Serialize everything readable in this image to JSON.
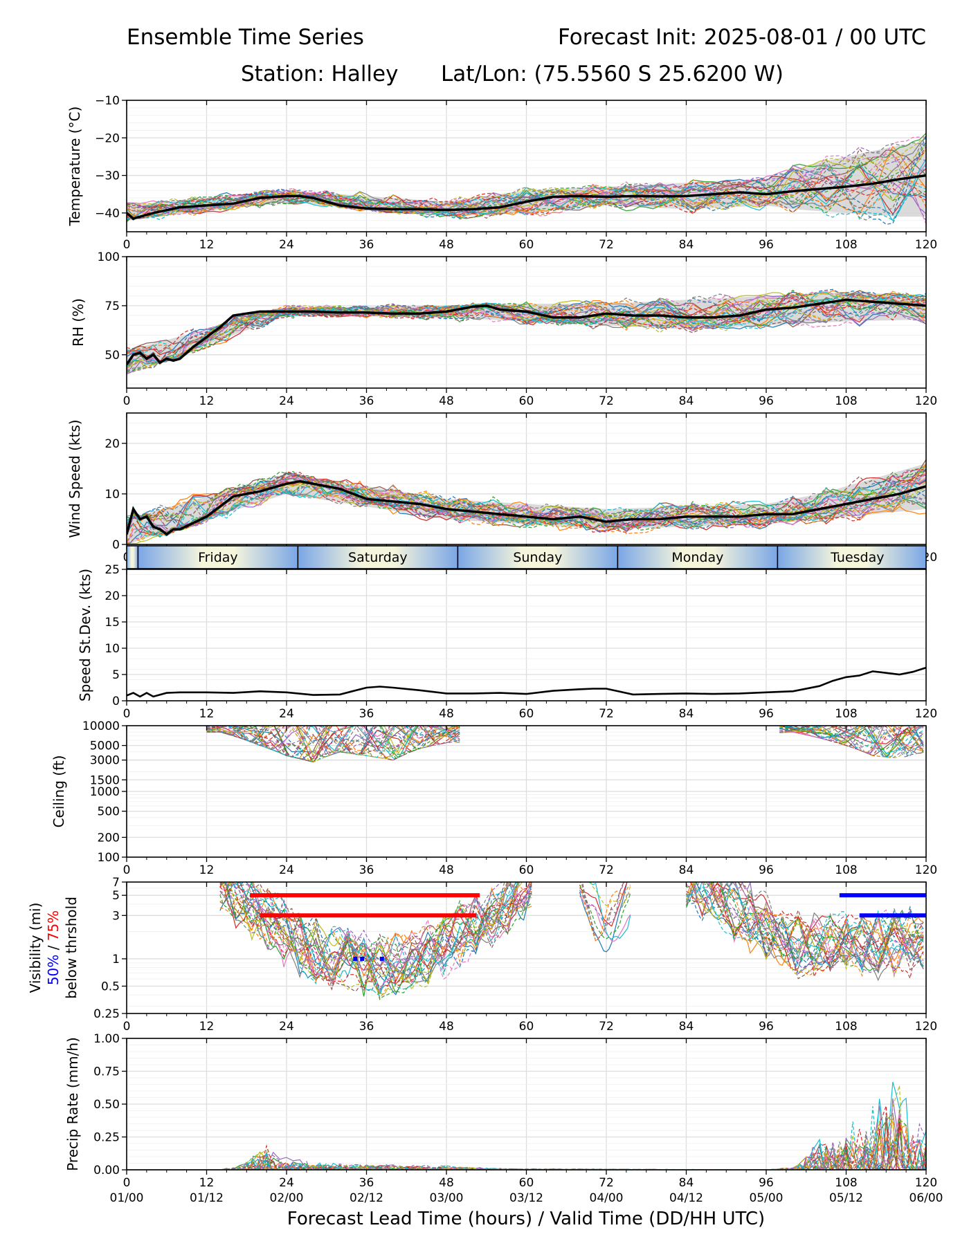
{
  "header": {
    "title_left": "Ensemble Time Series",
    "title_right": "Forecast Init: 2025-08-01 / 00 UTC",
    "station": "Station: Halley",
    "latlon": "Lat/Lon: (75.5560 S 25.6200 W)"
  },
  "colors": {
    "mean": "#000000",
    "spread": "#d3d3d3",
    "thr50": "#0000ff",
    "thr75": "#ff0000",
    "members": [
      "#1f77b4",
      "#ff7f0e",
      "#2ca02c",
      "#d62728",
      "#9467bd",
      "#8c564b",
      "#e377c2",
      "#7f7f7f",
      "#bcbd22",
      "#17becf"
    ],
    "day_gradient_edge": "#7aa6e6",
    "day_gradient_center": "#f5f5dc"
  },
  "x_axis": {
    "hours": [
      0,
      12,
      24,
      36,
      48,
      60,
      72,
      84,
      96,
      108,
      120
    ],
    "hour_labels": [
      "0",
      "12",
      "24",
      "36",
      "48",
      "60",
      "72",
      "84",
      "96",
      "108",
      "120"
    ],
    "valid_labels": [
      "01/00",
      "01/12",
      "02/00",
      "02/12",
      "03/00",
      "03/12",
      "04/00",
      "04/12",
      "05/00",
      "05/12",
      "06/00"
    ],
    "xlabel": "Forecast Lead Time (hours) / Valid Time (DD/HH UTC)"
  },
  "day_band": {
    "boundaries": [
      1.7,
      25.7,
      49.7,
      73.7,
      97.7
    ],
    "labels": [
      "Friday",
      "Saturday",
      "Sunday",
      "Monday",
      "Tuesday"
    ]
  },
  "chart_data": [
    {
      "id": "temperature",
      "type": "line",
      "ylabel": "Temperature (°C)",
      "ylim": [
        -45,
        -10
      ],
      "yticks": [
        -10,
        -20,
        -30,
        -40
      ],
      "ytick_labels": [
        "−10",
        "−20",
        "−30",
        "−40"
      ],
      "grid": true,
      "members": 30,
      "mean": {
        "x": [
          0,
          1,
          2,
          4,
          8,
          12,
          16,
          20,
          24,
          26,
          28,
          32,
          36,
          40,
          44,
          48,
          52,
          56,
          60,
          64,
          68,
          72,
          76,
          80,
          84,
          88,
          92,
          96,
          100,
          104,
          108,
          112,
          116,
          120
        ],
        "y": [
          -40,
          -41.5,
          -41,
          -40,
          -38.5,
          -38,
          -37.5,
          -36,
          -35.5,
          -35.5,
          -36,
          -38,
          -38.8,
          -39,
          -39,
          -39.2,
          -39,
          -38.5,
          -37,
          -35.7,
          -35.5,
          -35.7,
          -35.5,
          -35.6,
          -35.5,
          -35,
          -34.5,
          -35,
          -34.2,
          -33.6,
          -33,
          -32.2,
          -31,
          -30
        ]
      },
      "spread_upper": {
        "x": [
          0,
          24,
          48,
          60,
          72,
          84,
          96,
          100,
          104,
          108,
          112,
          116,
          120
        ],
        "y": [
          -38,
          -34,
          -37,
          -34,
          -33,
          -32,
          -31,
          -28.5,
          -26.5,
          -25,
          -23.5,
          -22,
          -21
        ]
      },
      "spread_lower": {
        "x": [
          0,
          24,
          48,
          60,
          72,
          84,
          96,
          100,
          104,
          108,
          112,
          116,
          120
        ],
        "y": [
          -42,
          -37,
          -41,
          -40,
          -38,
          -39,
          -38,
          -39,
          -39.5,
          -40,
          -40.5,
          -41,
          -41
        ]
      }
    },
    {
      "id": "rh",
      "type": "line",
      "ylabel": "RH (%)",
      "ylim": [
        33,
        100
      ],
      "yticks": [
        100,
        75,
        50
      ],
      "ytick_labels": [
        "100",
        "75",
        "50"
      ],
      "grid": true,
      "members": 30,
      "mean": {
        "x": [
          0,
          1,
          2,
          3,
          4,
          5,
          6,
          7,
          8,
          10,
          12,
          14,
          16,
          20,
          24,
          28,
          32,
          36,
          40,
          44,
          48,
          52,
          54,
          56,
          60,
          64,
          68,
          72,
          76,
          80,
          84,
          88,
          92,
          96,
          100,
          104,
          108,
          112,
          116,
          120
        ],
        "y": [
          45,
          50,
          51,
          48,
          50,
          46,
          48,
          47,
          48,
          54,
          59,
          64,
          70,
          72,
          72,
          72,
          71.5,
          71.5,
          71,
          71,
          72,
          74.5,
          75,
          73,
          72,
          69,
          69,
          71,
          70,
          70,
          69,
          69,
          70,
          73,
          74,
          76,
          78,
          77,
          76,
          75
        ]
      },
      "spread_upper": {
        "x": [
          0,
          24,
          48,
          60,
          72,
          84,
          96,
          108,
          120
        ],
        "y": [
          52,
          74,
          75,
          76,
          76,
          78,
          80,
          82,
          80
        ]
      },
      "spread_lower": {
        "x": [
          0,
          24,
          48,
          60,
          72,
          84,
          96,
          108,
          120
        ],
        "y": [
          40,
          70,
          69,
          67,
          65,
          63,
          65,
          67,
          68
        ]
      }
    },
    {
      "id": "wind",
      "type": "line",
      "ylabel": "Wind Speed (kts)",
      "ylim": [
        0,
        26
      ],
      "yticks": [
        0,
        10,
        20
      ],
      "ytick_labels": [
        "0",
        "10",
        "20"
      ],
      "grid": true,
      "members": 30,
      "mean": {
        "x": [
          0,
          1,
          2,
          3,
          4,
          5,
          6,
          7,
          8,
          12,
          16,
          20,
          24,
          26,
          28,
          32,
          36,
          40,
          44,
          48,
          52,
          56,
          60,
          64,
          68,
          72,
          76,
          80,
          84,
          88,
          92,
          96,
          100,
          104,
          108,
          112,
          116,
          120
        ],
        "y": [
          2,
          7,
          5,
          5.5,
          3.5,
          3,
          2,
          3,
          3,
          5.5,
          9.5,
          10.5,
          12,
          12.5,
          12,
          11,
          9,
          8.5,
          8,
          7,
          6.5,
          6,
          5.5,
          5,
          5.5,
          4.5,
          5,
          5,
          5.5,
          5.5,
          5.5,
          6,
          6,
          7,
          8,
          9,
          10,
          11.5
        ]
      },
      "spread_upper": {
        "x": [
          0,
          24,
          48,
          72,
          96,
          104,
          112,
          120
        ],
        "y": [
          5,
          14,
          9,
          7,
          8,
          10,
          13,
          16
        ]
      },
      "spread_lower": {
        "x": [
          0,
          24,
          48,
          72,
          96,
          104,
          112,
          120
        ],
        "y": [
          0,
          10,
          5,
          3,
          4,
          5,
          6,
          7
        ]
      }
    },
    {
      "id": "sdev",
      "type": "line",
      "ylabel": "Speed St.Dev. (kts)",
      "ylim": [
        0,
        25
      ],
      "yticks": [
        0,
        5,
        10,
        15,
        20,
        25
      ],
      "ytick_labels": [
        "0",
        "5",
        "10",
        "15",
        "20",
        "25"
      ],
      "grid": true,
      "series": {
        "x": [
          0,
          1,
          2,
          3,
          4,
          6,
          8,
          12,
          16,
          20,
          24,
          28,
          32,
          36,
          38,
          40,
          44,
          48,
          52,
          56,
          60,
          64,
          68,
          70,
          72,
          76,
          80,
          84,
          88,
          92,
          96,
          100,
          104,
          106,
          108,
          110,
          112,
          114,
          116,
          118,
          120
        ],
        "y": [
          1,
          1.5,
          0.8,
          1.5,
          0.8,
          1.5,
          1.6,
          1.6,
          1.5,
          1.8,
          1.6,
          1.1,
          1.2,
          2.5,
          2.7,
          2.5,
          2.0,
          1.4,
          1.4,
          1.5,
          1.3,
          1.9,
          2.2,
          2.3,
          2.3,
          1.2,
          1.3,
          1.4,
          1.3,
          1.4,
          1.6,
          1.8,
          2.8,
          3.8,
          4.5,
          4.8,
          5.6,
          5.3,
          5.0,
          5.5,
          6.3
        ]
      }
    },
    {
      "id": "ceiling",
      "type": "line",
      "ylabel": "Ceiling (ft)",
      "scale": "log",
      "ylim": [
        100,
        10000
      ],
      "yticks": [
        10000,
        5000,
        3000,
        1500,
        1000,
        500,
        200,
        100
      ],
      "ytick_labels": [
        "10000",
        "5000",
        "3000",
        "1500",
        "1000",
        "500",
        "200",
        "100"
      ],
      "grid": true,
      "members": 30,
      "active_ranges": [
        [
          12,
          50
        ],
        [
          98,
          120
        ]
      ],
      "minimum_level": [
        [
          14,
          8000
        ],
        [
          20,
          5000
        ],
        [
          24,
          3500
        ],
        [
          28,
          2800
        ],
        [
          32,
          4000
        ],
        [
          36,
          3500
        ],
        [
          40,
          3000
        ],
        [
          44,
          4500
        ],
        [
          48,
          5500
        ],
        [
          100,
          8000
        ],
        [
          108,
          5000
        ],
        [
          112,
          3500
        ],
        [
          116,
          3200
        ],
        [
          120,
          4000
        ]
      ]
    },
    {
      "id": "visibility",
      "type": "line",
      "ylabel": "Visibility (mi)",
      "ylabel2_50": "50%",
      "ylabel2_sep": " / ",
      "ylabel2_75": "75%",
      "ylabel3": "below thrshold",
      "scale": "log",
      "ylim": [
        0.25,
        7
      ],
      "yticks": [
        7,
        5,
        3,
        1,
        0.5,
        0.25
      ],
      "ytick_labels": [
        "7",
        "5",
        "3",
        "1",
        "0.5",
        "0.25"
      ],
      "grid": true,
      "members": 30,
      "active_ranges": [
        [
          14,
          61
        ],
        [
          68,
          76
        ],
        [
          84,
          120
        ]
      ],
      "thresholds": {
        "p75": [
          {
            "y": 5,
            "x0": 18.5,
            "x1": 53
          },
          {
            "y": 3,
            "x0": 20,
            "x1": 52.5
          }
        ],
        "p50": [
          {
            "y": 5,
            "x0": 107,
            "x1": 120
          },
          {
            "y": 3,
            "x0": 110,
            "x1": 120
          },
          {
            "y": 1,
            "x0": 34,
            "x1": 36
          },
          {
            "y": 1,
            "x0": 38,
            "x1": 39
          }
        ]
      }
    },
    {
      "id": "precip",
      "type": "line",
      "ylabel": "Precip Rate (mm/h)",
      "ylim": [
        0,
        1
      ],
      "yticks": [
        1,
        0.75,
        0.5,
        0.25,
        0
      ],
      "ytick_labels": [
        "1.00",
        "0.75",
        "0.50",
        "0.25",
        "0.00"
      ],
      "grid": true,
      "members": 30,
      "envelope": [
        [
          0,
          0
        ],
        [
          14,
          0
        ],
        [
          18,
          0.06
        ],
        [
          21,
          0.2
        ],
        [
          23,
          0.1
        ],
        [
          28,
          0.05
        ],
        [
          36,
          0.04
        ],
        [
          48,
          0.03
        ],
        [
          56,
          0.01
        ],
        [
          96,
          0
        ],
        [
          100,
          0.02
        ],
        [
          104,
          0.22
        ],
        [
          108,
          0.3
        ],
        [
          112,
          0.45
        ],
        [
          114,
          0.55
        ],
        [
          116,
          0.72
        ],
        [
          118,
          0.35
        ],
        [
          120,
          0.3
        ]
      ]
    }
  ]
}
